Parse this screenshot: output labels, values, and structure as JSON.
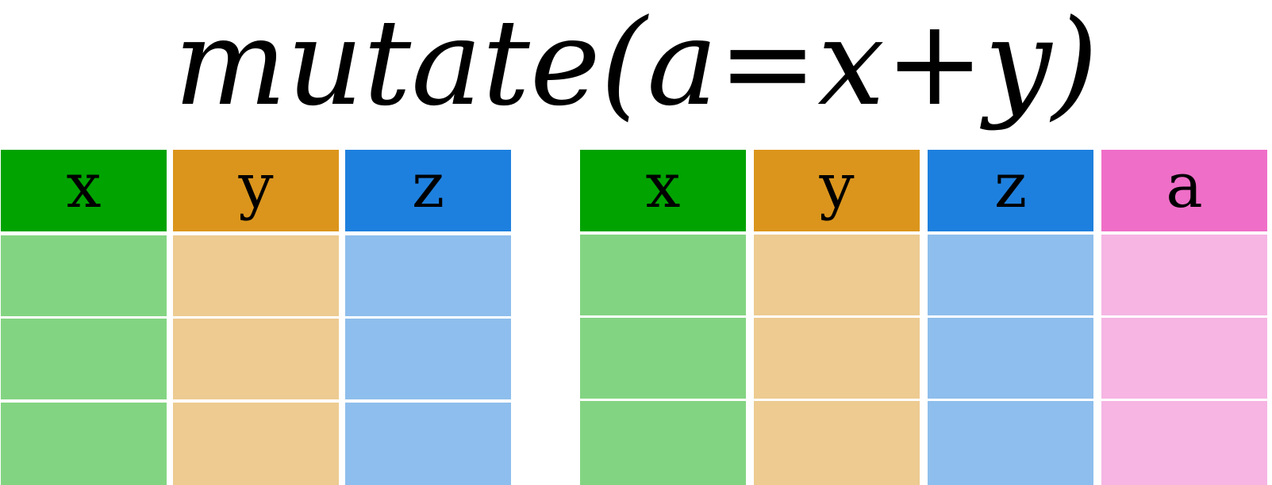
{
  "title": {
    "func": "mutate",
    "open": "(",
    "lhs": "a",
    "eq": "=",
    "x": "x",
    "plus": "+",
    "y": "y",
    "close": ")"
  },
  "input_table": {
    "columns": [
      {
        "name": "x",
        "header_color": "#00A300",
        "cell_color": "#83D482"
      },
      {
        "name": "y",
        "header_color": "#DB951C",
        "cell_color": "#EDCB91"
      },
      {
        "name": "z",
        "header_color": "#1E80DE",
        "cell_color": "#8EBEED"
      }
    ],
    "row_count": 3
  },
  "output_table": {
    "columns": [
      {
        "name": "x",
        "header_color": "#00A300",
        "cell_color": "#83D482"
      },
      {
        "name": "y",
        "header_color": "#DB951C",
        "cell_color": "#EDCB91"
      },
      {
        "name": "z",
        "header_color": "#1E80DE",
        "cell_color": "#8EBEED"
      },
      {
        "name": "a",
        "header_color": "#EF6EC7",
        "cell_color": "#F6B5E3"
      }
    ],
    "row_count": 3
  }
}
